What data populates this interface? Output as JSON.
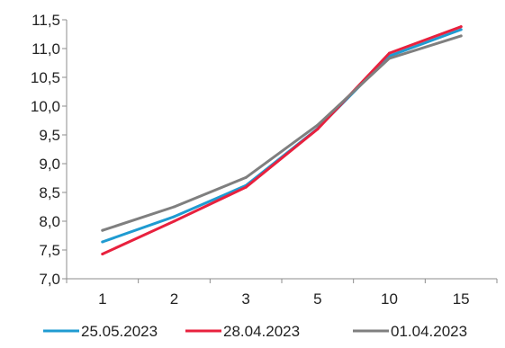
{
  "chart_data": {
    "type": "line",
    "title": "",
    "xlabel": "",
    "ylabel": "",
    "categories": [
      "1",
      "2",
      "3",
      "5",
      "10",
      "15"
    ],
    "ylim": [
      7.0,
      11.5
    ],
    "yticks": [
      "7,0",
      "7,5",
      "8,0",
      "8,5",
      "9,0",
      "9,5",
      "10,0",
      "10,5",
      "11,0",
      "11,5"
    ],
    "grid": false,
    "legend_position": "bottom",
    "series": [
      {
        "name": "25.05.2023",
        "color": "#1f9bd1",
        "values": [
          7.64,
          8.08,
          8.62,
          9.61,
          10.87,
          11.33
        ]
      },
      {
        "name": "28.04.2023",
        "color": "#e8213e",
        "values": [
          7.43,
          8.0,
          8.59,
          9.6,
          10.92,
          11.38
        ]
      },
      {
        "name": "01.04.2023",
        "color": "#7f7f7f",
        "values": [
          7.84,
          8.25,
          8.76,
          9.67,
          10.83,
          11.22
        ]
      }
    ]
  }
}
